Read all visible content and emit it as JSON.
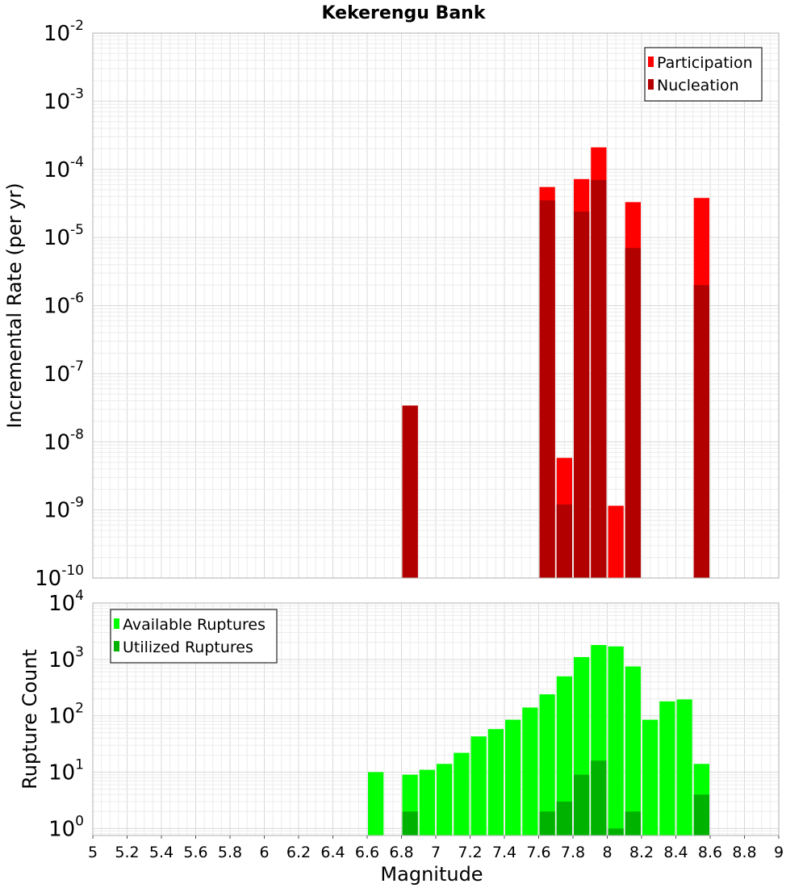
{
  "chart_data": [
    {
      "type": "bar",
      "title": "Kekerengu Bank",
      "ylabel": "Incremental Rate (per yr)",
      "xlim": [
        5,
        9
      ],
      "yscale": "log",
      "ylim": [
        1e-10,
        0.01
      ],
      "ytick_exponents": [
        -10,
        -9,
        -8,
        -7,
        -6,
        -5,
        -4,
        -3,
        -2
      ],
      "grid": true,
      "legend_position": "top-right",
      "bar_width": 0.1,
      "series": [
        {
          "name": "Participation",
          "color": "#ff0000",
          "x": [
            6.85,
            7.65,
            7.75,
            7.85,
            7.95,
            8.05,
            8.15,
            8.55
          ],
          "values": [
            3.4e-08,
            5.5e-05,
            5.8e-09,
            7.2e-05,
            0.00021,
            1.15e-09,
            3.3e-05,
            3.8e-05
          ]
        },
        {
          "name": "Nucleation",
          "color": "#b20000",
          "x": [
            6.85,
            7.65,
            7.75,
            7.85,
            7.95,
            8.15,
            8.55
          ],
          "values": [
            3.4e-08,
            3.5e-05,
            1.2e-09,
            2.4e-05,
            7e-05,
            7e-06,
            2e-06
          ]
        }
      ]
    },
    {
      "type": "bar",
      "xlabel": "Magnitude",
      "ylabel": "Rupture Count",
      "xlim": [
        5,
        9
      ],
      "xticks": [
        "5",
        "5.2",
        "5.4",
        "5.6",
        "5.8",
        "6",
        "6.2",
        "6.4",
        "6.6",
        "6.8",
        "7",
        "7.2",
        "7.4",
        "7.6",
        "7.8",
        "8",
        "8.2",
        "8.4",
        "8.6",
        "8.8",
        "9"
      ],
      "yscale": "log",
      "ylim": [
        0.75,
        10000
      ],
      "ytick_exponents": [
        0,
        1,
        2,
        3,
        4
      ],
      "grid": true,
      "legend_position": "top-left",
      "bar_width": 0.1,
      "series": [
        {
          "name": "Available Ruptures",
          "color": "#00ff00",
          "x": [
            6.65,
            6.85,
            6.95,
            7.05,
            7.15,
            7.25,
            7.35,
            7.45,
            7.55,
            7.65,
            7.75,
            7.85,
            7.95,
            8.05,
            8.15,
            8.25,
            8.35,
            8.45,
            8.55
          ],
          "values": [
            10,
            9,
            11,
            14,
            22,
            43,
            58,
            85,
            140,
            240,
            500,
            1100,
            1800,
            1700,
            750,
            85,
            180,
            195,
            14
          ]
        },
        {
          "name": "Utilized Ruptures",
          "color": "#00b200",
          "x": [
            6.85,
            7.65,
            7.75,
            7.85,
            7.95,
            8.05,
            8.15,
            8.55
          ],
          "values": [
            2,
            2,
            3,
            9,
            16,
            1,
            2,
            4
          ]
        }
      ]
    }
  ]
}
